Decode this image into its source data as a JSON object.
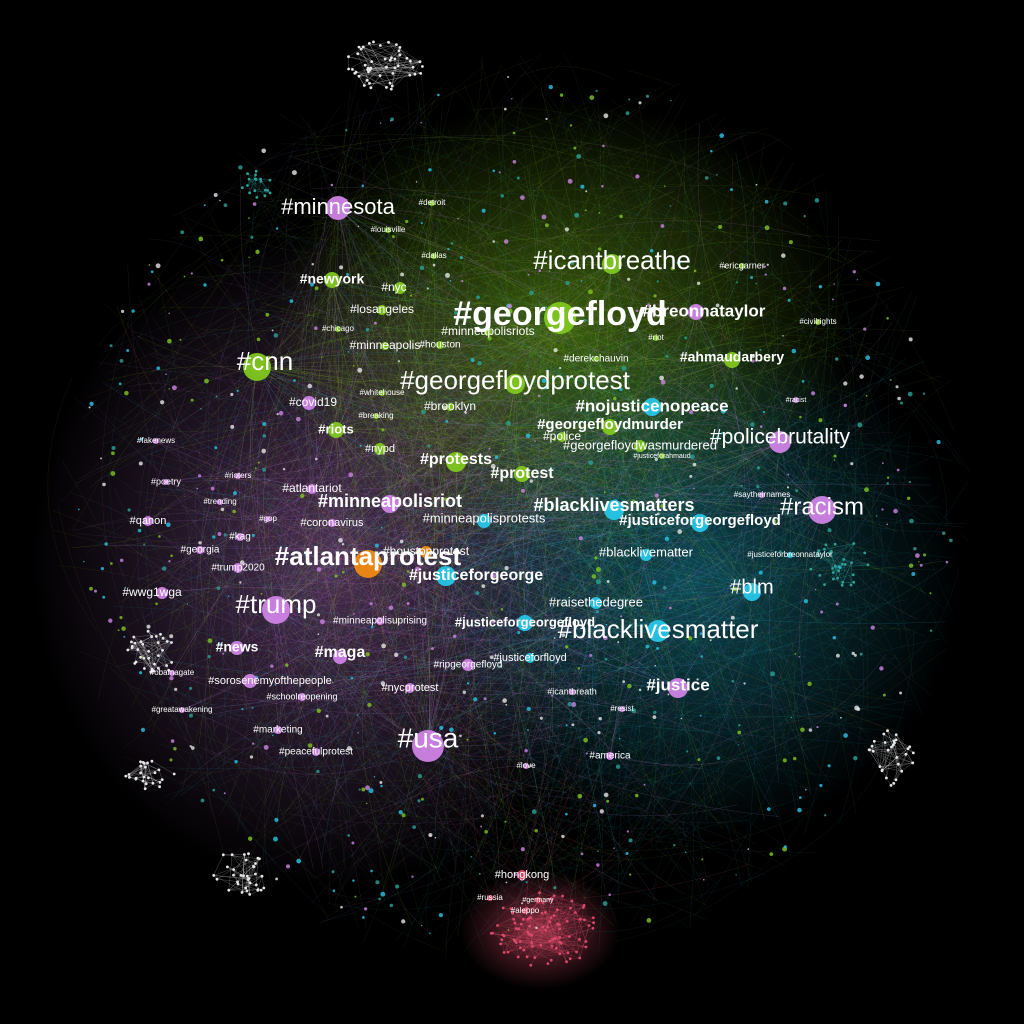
{
  "colors": {
    "background": "#000000",
    "magenta": "#cf83e6",
    "green": "#80c71f",
    "cyan": "#27c6e8",
    "orange": "#f08a12",
    "red": "#d94a68",
    "teal": "#2aa199",
    "white": "#e6e6e6"
  },
  "hashtags": [
    {
      "label": "#georgefloyd",
      "community": "green",
      "weight": 34
    },
    {
      "label": "#icantbreathe",
      "community": "green",
      "weight": 26
    },
    {
      "label": "#georgefloydprotest",
      "community": "green",
      "weight": 26
    },
    {
      "label": "#minnesota",
      "community": "magenta",
      "weight": 22
    },
    {
      "label": "#cnn",
      "community": "green",
      "weight": 26
    },
    {
      "label": "#breonnataylor",
      "community": "magenta",
      "weight": 17
    },
    {
      "label": "#ahmaudarbery",
      "community": "green",
      "weight": 14
    },
    {
      "label": "#nojusticenopeace",
      "community": "cyan",
      "weight": 17
    },
    {
      "label": "#georgefloydmurder",
      "community": "green",
      "weight": 15
    },
    {
      "label": "#policebrutality",
      "community": "magenta",
      "weight": 21
    },
    {
      "label": "#georgefloydwasmurdered",
      "community": "green",
      "weight": 13
    },
    {
      "label": "#protests",
      "community": "green",
      "weight": 16
    },
    {
      "label": "#protest",
      "community": "green",
      "weight": 16
    },
    {
      "label": "#blacklivesmatters",
      "community": "cyan",
      "weight": 18
    },
    {
      "label": "#racism",
      "community": "magenta",
      "weight": 24
    },
    {
      "label": "#justiceforgeorgefloyd",
      "community": "cyan",
      "weight": 15
    },
    {
      "label": "#minneapolisriot",
      "community": "magenta",
      "weight": 18
    },
    {
      "label": "#atlantaprotest",
      "community": "orange",
      "weight": 26
    },
    {
      "label": "#minneapolisprotests",
      "community": "cyan",
      "weight": 13
    },
    {
      "label": "#blacklivematter",
      "community": "cyan",
      "weight": 13
    },
    {
      "label": "#justiceforgeorge",
      "community": "cyan",
      "weight": 16
    },
    {
      "label": "#blm",
      "community": "cyan",
      "weight": 20
    },
    {
      "label": "#trump",
      "community": "magenta",
      "weight": 26
    },
    {
      "label": "#raisethedegree",
      "community": "cyan",
      "weight": 13
    },
    {
      "label": "#justiceforgeorgefloyd",
      "community": "cyan",
      "weight": 13
    },
    {
      "label": "#blacklivesmatter",
      "community": "cyan",
      "weight": 26
    },
    {
      "label": "#maga",
      "community": "magenta",
      "weight": 16
    },
    {
      "label": "#news",
      "community": "magenta",
      "weight": 14
    },
    {
      "label": "#justice",
      "community": "magenta",
      "weight": 17
    },
    {
      "label": "#usa",
      "community": "magenta",
      "weight": 28
    },
    {
      "label": "#newyork",
      "community": "green",
      "weight": 14
    },
    {
      "label": "#nyc",
      "community": "green",
      "weight": 12
    },
    {
      "label": "#losangeles",
      "community": "green",
      "weight": 12
    },
    {
      "label": "#minneapolisriots",
      "community": "green",
      "weight": 12
    },
    {
      "label": "#minneapolis",
      "community": "green",
      "weight": 12
    },
    {
      "label": "#houston",
      "community": "green",
      "weight": 10
    },
    {
      "label": "#covid19",
      "community": "magenta",
      "weight": 12
    },
    {
      "label": "#brooklyn",
      "community": "green",
      "weight": 12
    },
    {
      "label": "#riots",
      "community": "green",
      "weight": 13
    },
    {
      "label": "#nypd",
      "community": "green",
      "weight": 11
    },
    {
      "label": "#atlantariot",
      "community": "magenta",
      "weight": 12
    },
    {
      "label": "#coronavirus",
      "community": "magenta",
      "weight": 11
    },
    {
      "label": "#houstonprotest",
      "community": "orange",
      "weight": 12
    },
    {
      "label": "#wwg1wga",
      "community": "magenta",
      "weight": 12
    },
    {
      "label": "#qanon",
      "community": "magenta",
      "weight": 11
    },
    {
      "label": "#trump2020",
      "community": "magenta",
      "weight": 10
    },
    {
      "label": "#kag",
      "community": "magenta",
      "weight": 10
    },
    {
      "label": "#georgia",
      "community": "magenta",
      "weight": 10
    },
    {
      "label": "#sorosenemyofthepeople",
      "community": "magenta",
      "weight": 11
    },
    {
      "label": "#nycprotest",
      "community": "magenta",
      "weight": 11
    },
    {
      "label": "#ripgeorgefloyd",
      "community": "magenta",
      "weight": 10
    },
    {
      "label": "#justiceforfloyd",
      "community": "cyan",
      "weight": 11
    },
    {
      "label": "#minneapolisuprising",
      "community": "magenta",
      "weight": 10
    },
    {
      "label": "#schoolreopening",
      "community": "magenta",
      "weight": 9
    },
    {
      "label": "#marketing",
      "community": "magenta",
      "weight": 10
    },
    {
      "label": "#peacefulprotest",
      "community": "magenta",
      "weight": 10
    },
    {
      "label": "#america",
      "community": "magenta",
      "weight": 10
    },
    {
      "label": "#hongkong",
      "community": "red",
      "weight": 11
    },
    {
      "label": "#russia",
      "community": "red",
      "weight": 8
    },
    {
      "label": "#aleppo",
      "community": "red",
      "weight": 8
    },
    {
      "label": "#germany",
      "community": "red",
      "weight": 7
    },
    {
      "label": "#icantbreath",
      "community": "magenta",
      "weight": 9
    },
    {
      "label": "#resist",
      "community": "magenta",
      "weight": 8
    },
    {
      "label": "#derekchauvin",
      "community": "green",
      "weight": 10
    },
    {
      "label": "#saytheirnames",
      "community": "magenta",
      "weight": 8
    },
    {
      "label": "#justiceforbreonnataylor",
      "community": "cyan",
      "weight": 8
    },
    {
      "label": "#justiceforahmaud",
      "community": "green",
      "weight": 7
    },
    {
      "label": "#ericgarner",
      "community": "green",
      "weight": 9
    },
    {
      "label": "#civilrights",
      "community": "green",
      "weight": 8
    },
    {
      "label": "#louisville",
      "community": "green",
      "weight": 8
    },
    {
      "label": "#dallas",
      "community": "green",
      "weight": 8
    },
    {
      "label": "#detroit",
      "community": "green",
      "weight": 8
    },
    {
      "label": "#chicago",
      "community": "green",
      "weight": 8
    },
    {
      "label": "#fakenews",
      "community": "magenta",
      "weight": 8
    },
    {
      "label": "#poetry",
      "community": "magenta",
      "weight": 9
    },
    {
      "label": "#rioters",
      "community": "magenta",
      "weight": 8
    },
    {
      "label": "#trending",
      "community": "magenta",
      "weight": 8
    },
    {
      "label": "#gop",
      "community": "magenta",
      "weight": 8
    },
    {
      "label": "#obamagate",
      "community": "magenta",
      "weight": 8
    },
    {
      "label": "#greatawakening",
      "community": "magenta",
      "weight": 8
    },
    {
      "label": "#breaking",
      "community": "green",
      "weight": 8
    },
    {
      "label": "#whitehouse",
      "community": "green",
      "weight": 8
    },
    {
      "label": "#riot",
      "community": "green",
      "weight": 8
    },
    {
      "label": "#racist",
      "community": "magenta",
      "weight": 7
    },
    {
      "label": "#love",
      "community": "magenta",
      "weight": 8
    },
    {
      "label": "#police",
      "community": "green",
      "weight": 12
    }
  ]
}
